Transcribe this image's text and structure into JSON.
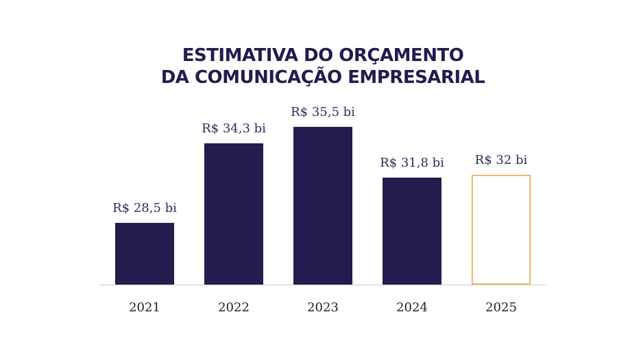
{
  "chart_data": {
    "type": "bar",
    "title": [
      "ESTIMATIVA DO ORÇAMENTO",
      "DA COMUNICAÇÃO EMPRESARIAL"
    ],
    "categories": [
      "2021",
      "2022",
      "2023",
      "2024",
      "2025"
    ],
    "values": [
      28.5,
      34.3,
      35.5,
      31.8,
      32
    ],
    "value_labels": [
      "R$ 28,5 bi",
      "R$ 34,3 bi",
      "R$ 35,5 bi",
      "R$ 31,8 bi",
      "R$ 32 bi"
    ],
    "colors": [
      "#221c4f",
      "#221c4f",
      "#221c4f",
      "#221c4f",
      "#ffffff"
    ],
    "edge_colors": [
      "#221c4f",
      "#221c4f",
      "#221c4f",
      "#221c4f",
      "#e8a33c"
    ],
    "ylim": [
      24,
      36
    ]
  }
}
